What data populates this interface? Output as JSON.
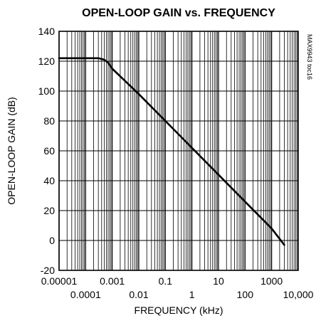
{
  "chart_data": {
    "type": "line",
    "title": "OPEN-LOOP GAIN vs. FREQUENCY",
    "xlabel": "FREQUENCY (kHz)",
    "ylabel": "OPEN-LOOP GAIN (dB)",
    "annotation": "MAX9943 toc16",
    "x_scale": "log",
    "xlim": [
      1e-05,
      10000
    ],
    "ylim": [
      -20,
      140
    ],
    "grid": true,
    "x_ticks": [
      {
        "value": 1e-05,
        "label": "0.00001",
        "row": "upper"
      },
      {
        "value": 0.0001,
        "label": "0.0001",
        "row": "lower"
      },
      {
        "value": 0.001,
        "label": "0.001",
        "row": "upper"
      },
      {
        "value": 0.01,
        "label": "0.01",
        "row": "lower"
      },
      {
        "value": 0.1,
        "label": "0.1",
        "row": "upper"
      },
      {
        "value": 1,
        "label": "1",
        "row": "lower"
      },
      {
        "value": 10,
        "label": "10",
        "row": "upper"
      },
      {
        "value": 100,
        "label": "100",
        "row": "lower"
      },
      {
        "value": 1000,
        "label": "1000",
        "row": "upper"
      },
      {
        "value": 10000,
        "label": "10,000",
        "row": "lower"
      }
    ],
    "y_ticks": [
      {
        "value": 140,
        "label": "140"
      },
      {
        "value": 120,
        "label": "120"
      },
      {
        "value": 100,
        "label": "100"
      },
      {
        "value": 80,
        "label": "80"
      },
      {
        "value": 60,
        "label": "60"
      },
      {
        "value": 40,
        "label": "40"
      },
      {
        "value": 20,
        "label": "20"
      },
      {
        "value": 0,
        "label": "0"
      },
      {
        "value": -20,
        "label": "-20"
      }
    ],
    "series": [
      {
        "color": "#000000",
        "x": [
          1e-05,
          0.0001,
          0.0003,
          0.0005,
          0.0007,
          0.001,
          0.01,
          0.1,
          1,
          10,
          100,
          1000,
          3000
        ],
        "y": [
          122,
          122,
          122,
          121,
          119,
          115,
          98,
          80,
          62,
          44,
          26,
          8,
          -3
        ]
      }
    ]
  }
}
